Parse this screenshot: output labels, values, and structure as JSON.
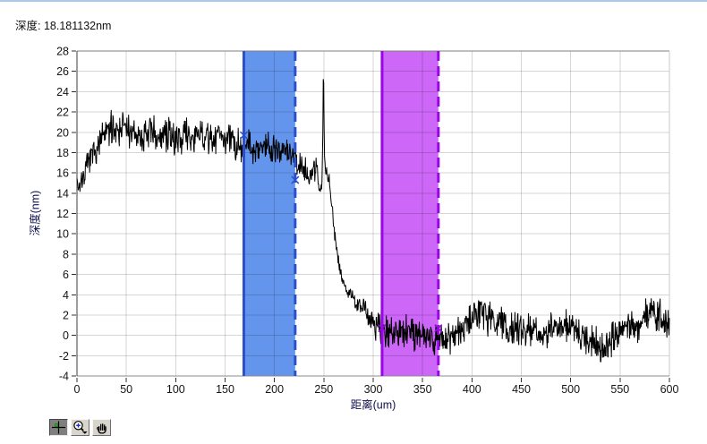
{
  "reading": {
    "label": "深度: 18.181132nm"
  },
  "toolbar": {
    "buttons": [
      {
        "label": "cursor movement tool",
        "icon": "crosshair-icon",
        "pressed": true
      },
      {
        "label": "zoom tool",
        "icon": "magnifier-plus-icon",
        "pressed": false
      },
      {
        "label": "pan tool",
        "icon": "hand-icon",
        "pressed": false
      }
    ]
  },
  "chart_data": {
    "type": "line",
    "title": "",
    "xlabel": "距离(um)",
    "ylabel": "深度(nm)",
    "xlim": [
      0,
      600
    ],
    "ylim": [
      -4,
      28
    ],
    "x_ticks": [
      0,
      50,
      100,
      150,
      200,
      250,
      300,
      350,
      400,
      450,
      500,
      550,
      600
    ],
    "y_ticks": [
      -4,
      -2,
      0,
      2,
      4,
      6,
      8,
      10,
      12,
      14,
      16,
      18,
      20,
      22,
      24,
      26,
      28
    ],
    "grid": true,
    "legend": "none",
    "line_color": "#000000",
    "frame_colors": {
      "top": "#7f7f7f",
      "right": "#c8c8c8",
      "bottom": "#8c8c8c",
      "left": "#3c3c3c"
    },
    "grid_color": "rgba(0,0,0,0.16)",
    "tick_color": "#141414",
    "regions": [
      {
        "name": "reference-region",
        "x_start": 169,
        "x_end": 221,
        "fill": "#6495ec",
        "edge": "#2b50cc",
        "left_edge_style": "solid",
        "right_edge_style": "dashed",
        "cursors": [
          {
            "x": 169,
            "y": 19.7
          },
          {
            "x": 221,
            "y": 15.3
          }
        ]
      },
      {
        "name": "measure-region",
        "x_start": 309,
        "x_end": 366,
        "fill": "#cc67f7",
        "edge": "#9a05e8",
        "left_edge_style": "solid",
        "right_edge_style": "dashed",
        "cursors": [
          {
            "x": 309,
            "y": 0.7
          },
          {
            "x": 366,
            "y": 0.7
          }
        ]
      }
    ],
    "series": {
      "name": "depth-profile",
      "samples": 1400,
      "seed": 7,
      "keypoints": [
        [
          0,
          15.5
        ],
        [
          2,
          14.7
        ],
        [
          5,
          15.3
        ],
        [
          10,
          16.3
        ],
        [
          15,
          17.3
        ],
        [
          20,
          18.4
        ],
        [
          28,
          19.3
        ],
        [
          35,
          19.8
        ],
        [
          45,
          19.9
        ],
        [
          55,
          19.4
        ],
        [
          65,
          19.6
        ],
        [
          75,
          19.8
        ],
        [
          85,
          19.4
        ],
        [
          95,
          19.3
        ],
        [
          105,
          19.6
        ],
        [
          115,
          19.3
        ],
        [
          125,
          19.5
        ],
        [
          135,
          19.1
        ],
        [
          145,
          19.4
        ],
        [
          155,
          18.9
        ],
        [
          165,
          18.8
        ],
        [
          172,
          18.9
        ],
        [
          180,
          18.6
        ],
        [
          188,
          18.8
        ],
        [
          196,
          18.4
        ],
        [
          204,
          18.2
        ],
        [
          210,
          17.9
        ],
        [
          216,
          18.1
        ],
        [
          222,
          17.3
        ],
        [
          228,
          16.8
        ],
        [
          233,
          16.2
        ],
        [
          237,
          15.7
        ],
        [
          240,
          16.4
        ],
        [
          243,
          15.9
        ],
        [
          246,
          14.7
        ],
        [
          248,
          14.2
        ],
        [
          249,
          20.0
        ],
        [
          249.6,
          27.4
        ],
        [
          250.3,
          20.5
        ],
        [
          251,
          16.5
        ],
        [
          252.5,
          15.9
        ],
        [
          254,
          16.1
        ],
        [
          255.5,
          15.2
        ],
        [
          257,
          13.9
        ],
        [
          258.5,
          12.6
        ],
        [
          260,
          11.2
        ],
        [
          262,
          9.6
        ],
        [
          264,
          8.4
        ],
        [
          266,
          7.3
        ],
        [
          268,
          6.4
        ],
        [
          270,
          5.6
        ],
        [
          272,
          5.0
        ],
        [
          274,
          4.6
        ],
        [
          277,
          4.1
        ],
        [
          280,
          3.5
        ],
        [
          283,
          3.1
        ],
        [
          287,
          2.9
        ],
        [
          291,
          2.7
        ],
        [
          295,
          2.1
        ],
        [
          299,
          1.5
        ],
        [
          303,
          1.0
        ],
        [
          308,
          0.7
        ],
        [
          314,
          0.4
        ],
        [
          322,
          0.3
        ],
        [
          330,
          0.5
        ],
        [
          338,
          0.2
        ],
        [
          346,
          0.4
        ],
        [
          354,
          0.2
        ],
        [
          362,
          0.4
        ],
        [
          369,
          0.3
        ],
        [
          374,
          -0.2
        ],
        [
          380,
          -0.6
        ],
        [
          385,
          -0.3
        ],
        [
          390,
          0.3
        ],
        [
          396,
          1.0
        ],
        [
          402,
          1.7
        ],
        [
          407,
          2.2
        ],
        [
          412,
          2.5
        ],
        [
          417,
          2.2
        ],
        [
          423,
          1.7
        ],
        [
          429,
          1.2
        ],
        [
          436,
          1.0
        ],
        [
          444,
          1.2
        ],
        [
          452,
          0.8
        ],
        [
          460,
          1.1
        ],
        [
          468,
          0.7
        ],
        [
          476,
          0.9
        ],
        [
          484,
          0.6
        ],
        [
          492,
          0.8
        ],
        [
          500,
          0.5
        ],
        [
          508,
          0.2
        ],
        [
          516,
          -0.2
        ],
        [
          524,
          -0.5
        ],
        [
          531,
          -0.8
        ],
        [
          537,
          -0.5
        ],
        [
          543,
          0.0
        ],
        [
          549,
          0.5
        ],
        [
          556,
          0.9
        ],
        [
          563,
          1.3
        ],
        [
          570,
          1.7
        ],
        [
          576,
          2.1
        ],
        [
          581,
          2.3
        ],
        [
          586,
          1.9
        ],
        [
          591,
          1.7
        ],
        [
          596,
          1.5
        ],
        [
          600,
          1.3
        ]
      ],
      "noise_amplitude": [
        [
          0,
          0.6
        ],
        [
          8,
          0.7
        ],
        [
          20,
          0.9
        ],
        [
          30,
          1.05
        ],
        [
          150,
          1.05
        ],
        [
          225,
          0.95
        ],
        [
          244,
          0.8
        ],
        [
          248,
          0.3
        ],
        [
          249.6,
          0.1
        ],
        [
          251,
          0.4
        ],
        [
          256,
          0.5
        ],
        [
          262,
          0.45
        ],
        [
          270,
          0.5
        ],
        [
          280,
          0.55
        ],
        [
          290,
          0.7
        ],
        [
          300,
          0.85
        ],
        [
          310,
          1.0
        ],
        [
          330,
          1.05
        ],
        [
          600,
          1.05
        ]
      ]
    }
  }
}
